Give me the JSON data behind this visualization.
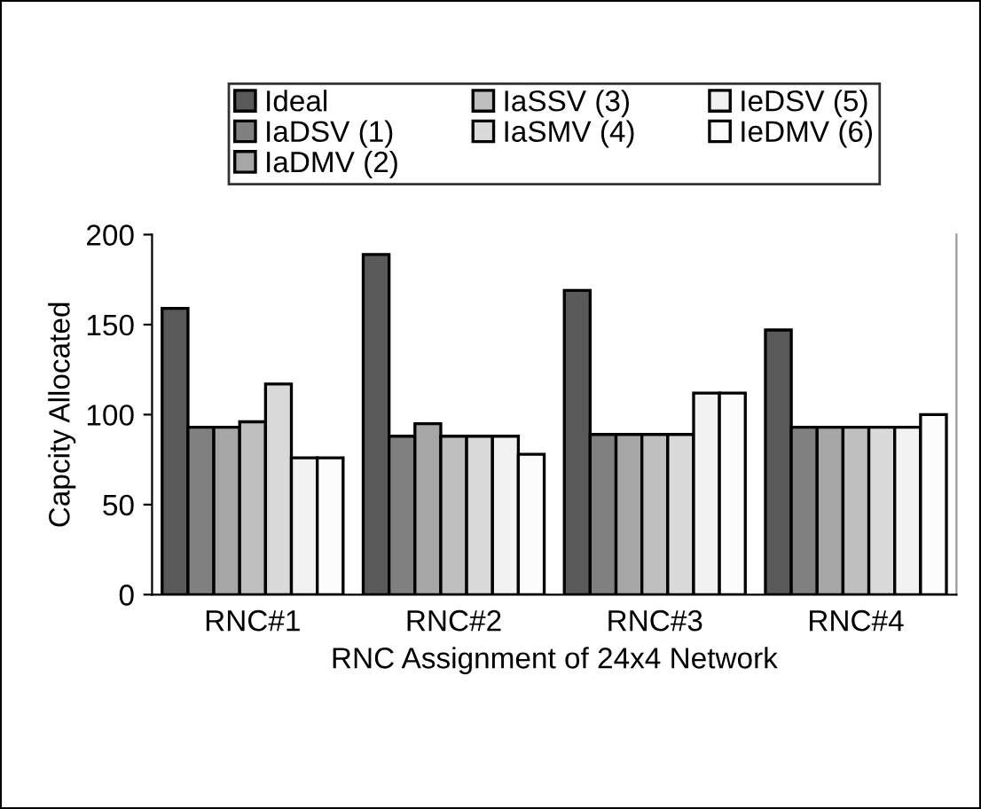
{
  "chart_data": {
    "type": "bar",
    "xlabel": "RNC Assignment of 24x4 Network",
    "ylabel": "Capcity Allocated",
    "categories": [
      "RNC#1",
      "RNC#2",
      "RNC#3",
      "RNC#4"
    ],
    "series": [
      {
        "name": "Ideal",
        "color": "#595959",
        "values": [
          159,
          189,
          169,
          147
        ]
      },
      {
        "name": "IaDSV (1)",
        "color": "#808080",
        "values": [
          93,
          88,
          89,
          93
        ]
      },
      {
        "name": "IaDMV (2)",
        "color": "#a6a6a6",
        "values": [
          93,
          95,
          89,
          93
        ]
      },
      {
        "name": "IaSSV (3)",
        "color": "#bfbfbf",
        "values": [
          96,
          88,
          89,
          93
        ]
      },
      {
        "name": "IaSMV (4)",
        "color": "#d9d9d9",
        "values": [
          117,
          88,
          89,
          93
        ]
      },
      {
        "name": "IeDSV (5)",
        "color": "#f2f2f2",
        "values": [
          76,
          88,
          112,
          93
        ]
      },
      {
        "name": "IeDMV (6)",
        "color": "#fcfcfc",
        "values": [
          76,
          78,
          112,
          100
        ]
      }
    ],
    "ylim": [
      0,
      200
    ],
    "yticks": [
      0,
      50,
      100,
      150,
      200
    ],
    "grid": false,
    "legend": "top"
  }
}
